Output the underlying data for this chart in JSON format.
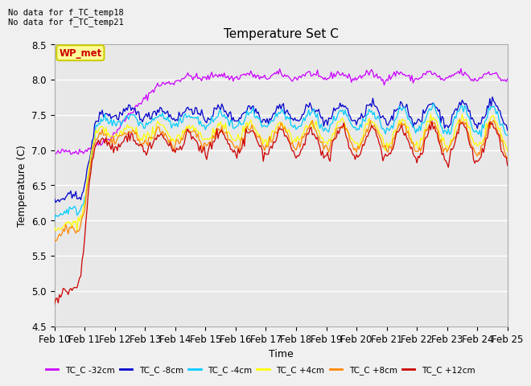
{
  "title": "Temperature Set C",
  "xlabel": "Time",
  "ylabel": "Temperature (C)",
  "ylim": [
    4.5,
    8.5
  ],
  "xlim": [
    0,
    360
  ],
  "annotation_lines": [
    "No data for f_TC_temp18",
    "No data for f_TC_temp21"
  ],
  "wp_met_label": "WP_met",
  "plot_bg_color": "#e8e8e8",
  "fig_bg_color": "#f0f0f0",
  "grid_color": "white",
  "x_tick_labels": [
    "Feb 10",
    "Feb 11",
    "Feb 12",
    "Feb 13",
    "Feb 14",
    "Feb 15",
    "Feb 16",
    "Feb 17",
    "Feb 18",
    "Feb 19",
    "Feb 20",
    "Feb 21",
    "Feb 22",
    "Feb 23",
    "Feb 24",
    "Feb 25"
  ],
  "x_tick_positions": [
    0,
    24,
    48,
    72,
    96,
    120,
    144,
    168,
    192,
    216,
    240,
    264,
    288,
    312,
    336,
    360
  ],
  "series": [
    {
      "label": "TC_C -32cm",
      "color": "#cc00ff"
    },
    {
      "label": "TC_C -8cm",
      "color": "#0000cc"
    },
    {
      "label": "TC_C -4cm",
      "color": "#00ccff"
    },
    {
      "label": "TC_C +4cm",
      "color": "#ffff00"
    },
    {
      "label": "TC_C +8cm",
      "color": "#ff8800"
    },
    {
      "label": "TC_C +12cm",
      "color": "#cc0000"
    }
  ],
  "wp_met_box_color": "#ffff99",
  "wp_met_text_color": "#cc0000",
  "wp_met_border_color": "#cccc00",
  "n_points": 361,
  "seed": 42
}
